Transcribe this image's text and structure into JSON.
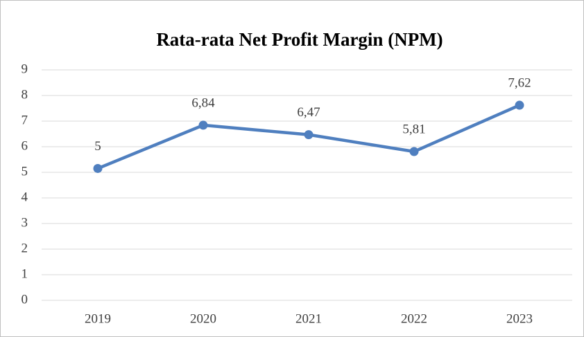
{
  "chart_data": {
    "type": "line",
    "title": "Rata-rata Net Profit Margin (NPM)",
    "categories": [
      "2019",
      "2020",
      "2021",
      "2022",
      "2023"
    ],
    "values": [
      5.15,
      6.84,
      6.47,
      5.81,
      7.62
    ],
    "value_labels": [
      "5",
      "6,84",
      "6,47",
      "5,81",
      "7,62"
    ],
    "color": "#4f7fbf",
    "ylim": [
      0,
      9
    ],
    "yticks": [
      0,
      1,
      2,
      3,
      4,
      5,
      6,
      7,
      8,
      9
    ],
    "grid": true
  }
}
